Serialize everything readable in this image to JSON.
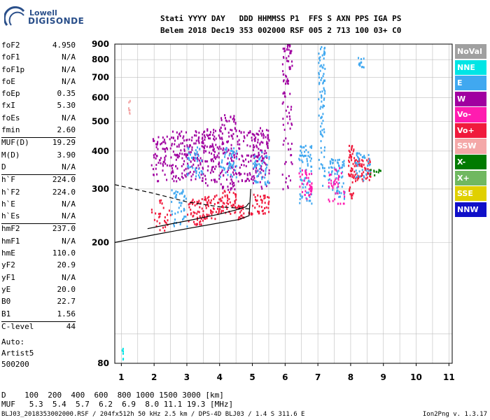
{
  "logo": {
    "line1": "Lowell",
    "line2": "DIGISONDE"
  },
  "header": {
    "line1": "Stati YYYY DAY   DDD HHMMSS P1  FFS S AXN PPS IGA PS",
    "line2": "Belem 2018 Dec19 353 002000 RSF 005 2 713 100 03+ C0"
  },
  "params": [
    {
      "name": "foF2",
      "value": "4.950"
    },
    {
      "name": "foF1",
      "value": "N/A"
    },
    {
      "name": "foF1p",
      "value": "N/A"
    },
    {
      "name": "foE",
      "value": "N/A"
    },
    {
      "name": "foEp",
      "value": "0.35"
    },
    {
      "name": "fxI",
      "value": "5.30"
    },
    {
      "name": "foEs",
      "value": "N/A"
    },
    {
      "name": "fmin",
      "value": "2.60"
    },
    {
      "name": "MUF(D)",
      "value": "19.29",
      "sep": true
    },
    {
      "name": "M(D)",
      "value": "3.90"
    },
    {
      "name": "D",
      "value": "N/A"
    },
    {
      "name": "h`F",
      "value": "224.0",
      "sep": true
    },
    {
      "name": "h`F2",
      "value": "224.0"
    },
    {
      "name": "h`E",
      "value": "N/A"
    },
    {
      "name": "h`Es",
      "value": "N/A"
    },
    {
      "name": "hmF2",
      "value": "237.0",
      "sep": true
    },
    {
      "name": "hmF1",
      "value": "N/A"
    },
    {
      "name": "hmE",
      "value": "110.0"
    },
    {
      "name": "yF2",
      "value": "20.9"
    },
    {
      "name": "yF1",
      "value": "N/A"
    },
    {
      "name": "yE",
      "value": "20.0"
    },
    {
      "name": "B0",
      "value": "22.7"
    },
    {
      "name": "B1",
      "value": "1.56"
    },
    {
      "name": "C-level",
      "value": "44",
      "sep": true
    }
  ],
  "auto": {
    "line1": "Auto:",
    "line2": "Artist5",
    "line3": "500200"
  },
  "legend": [
    {
      "label": "NoVal",
      "color": "#a0a0a0"
    },
    {
      "label": "NNE",
      "color": "#00e5e5"
    },
    {
      "label": "E",
      "color": "#40a8f0"
    },
    {
      "label": "W",
      "color": "#a000a0"
    },
    {
      "label": "Vo-",
      "color": "#ff1cb0"
    },
    {
      "label": "Vo+",
      "color": "#f01a3c"
    },
    {
      "label": "SSW",
      "color": "#f4a8a8"
    },
    {
      "label": "X-",
      "color": "#007a00"
    },
    {
      "label": "X+",
      "color": "#70b860"
    },
    {
      "label": "SSE",
      "color": "#e0d000"
    },
    {
      "label": "NNW",
      "color": "#1010c8"
    }
  ],
  "bottom": {
    "d_row": "D    100  200  400  600  800 1000 1500 3000 [km]",
    "muf_row": "MUF   5.3  5.4  5.7  6.2  6.9  8.0 11.1 19.3 [MHz]"
  },
  "footer": {
    "left": "BLJ03_2018353002000.RSF / 204fx512h 50 kHz 2.5 km / DPS-4D BLJ03 / 1.4 S 311.6 E",
    "right": "Ion2Png v. 1.3.17"
  },
  "chart_data": {
    "type": "scatter",
    "title": "",
    "xlabel": "",
    "ylabel": "",
    "xlim": [
      0.8,
      11.1
    ],
    "ylim": [
      80,
      900
    ],
    "x_ticks": [
      1,
      2,
      3,
      4,
      5,
      6,
      7,
      8,
      9,
      10,
      11
    ],
    "y_ticks": [
      80,
      200,
      300,
      400,
      500,
      600,
      700,
      800,
      900
    ],
    "y_scale": "log",
    "grid": true,
    "legend_position": "right",
    "clusters": [
      {
        "f": [
          1.0,
          1.05
        ],
        "h": [
          80,
          90
        ],
        "pol": "NNE",
        "n": 6
      },
      {
        "f": [
          1.2,
          1.25
        ],
        "h": [
          520,
          600
        ],
        "pol": "SSW",
        "n": 8
      },
      {
        "f": [
          1.9,
          2.5
        ],
        "h": [
          220,
          280
        ],
        "pol": "Vo+",
        "n": 30
      },
      {
        "f": [
          1.9,
          2.5
        ],
        "h": [
          320,
          450
        ],
        "pol": "W",
        "n": 60
      },
      {
        "f": [
          2.5,
          3.0
        ],
        "h": [
          225,
          300
        ],
        "pol": "E",
        "n": 45
      },
      {
        "f": [
          2.5,
          3.0
        ],
        "h": [
          320,
          470
        ],
        "pol": "W",
        "n": 80
      },
      {
        "f": [
          3.0,
          3.5
        ],
        "h": [
          230,
          280
        ],
        "pol": "Vo+",
        "n": 50
      },
      {
        "f": [
          3.0,
          3.5
        ],
        "h": [
          320,
          470
        ],
        "pol": "W",
        "n": 80
      },
      {
        "f": [
          3.0,
          3.5
        ],
        "h": [
          330,
          420
        ],
        "pol": "E",
        "n": 40
      },
      {
        "f": [
          3.5,
          4.0
        ],
        "h": [
          240,
          290
        ],
        "pol": "Vo+",
        "n": 50
      },
      {
        "f": [
          3.5,
          4.0
        ],
        "h": [
          310,
          480
        ],
        "pol": "W",
        "n": 90
      },
      {
        "f": [
          4.0,
          4.5
        ],
        "h": [
          250,
          300
        ],
        "pol": "Vo+",
        "n": 50
      },
      {
        "f": [
          4.0,
          4.5
        ],
        "h": [
          300,
          530
        ],
        "pol": "W",
        "n": 110
      },
      {
        "f": [
          4.0,
          4.5
        ],
        "h": [
          330,
          420
        ],
        "pol": "E",
        "n": 50
      },
      {
        "f": [
          4.5,
          5.0
        ],
        "h": [
          240,
          270
        ],
        "pol": "Vo+",
        "n": 30
      },
      {
        "f": [
          4.5,
          5.0
        ],
        "h": [
          320,
          470
        ],
        "pol": "W",
        "n": 60
      },
      {
        "f": [
          5.0,
          5.5
        ],
        "h": [
          250,
          290
        ],
        "pol": "Vo+",
        "n": 40
      },
      {
        "f": [
          5.0,
          5.5
        ],
        "h": [
          300,
          480
        ],
        "pol": "W",
        "n": 110
      },
      {
        "f": [
          5.0,
          5.5
        ],
        "h": [
          310,
          400
        ],
        "pol": "E",
        "n": 50
      },
      {
        "f": [
          5.9,
          6.2
        ],
        "h": [
          300,
          900
        ],
        "pol": "W",
        "n": 90
      },
      {
        "f": [
          6.4,
          6.8
        ],
        "h": [
          270,
          420
        ],
        "pol": "E",
        "n": 70
      },
      {
        "f": [
          6.4,
          6.8
        ],
        "h": [
          280,
          350
        ],
        "pol": "Vo-",
        "n": 40
      },
      {
        "f": [
          7.0,
          7.2
        ],
        "h": [
          300,
          900
        ],
        "pol": "E",
        "n": 90
      },
      {
        "f": [
          7.3,
          7.8
        ],
        "h": [
          280,
          380
        ],
        "pol": "E",
        "n": 70
      },
      {
        "f": [
          7.3,
          7.8
        ],
        "h": [
          270,
          360
        ],
        "pol": "Vo-",
        "n": 40
      },
      {
        "f": [
          7.9,
          8.1
        ],
        "h": [
          280,
          420
        ],
        "pol": "Vo+",
        "n": 50
      },
      {
        "f": [
          8.1,
          8.6
        ],
        "h": [
          320,
          380
        ],
        "pol": "Vo+",
        "n": 60
      },
      {
        "f": [
          8.1,
          8.6
        ],
        "h": [
          320,
          400
        ],
        "pol": "E",
        "n": 40
      },
      {
        "f": [
          8.2,
          8.5
        ],
        "h": [
          760,
          820
        ],
        "pol": "E",
        "n": 12
      },
      {
        "f": [
          8.5,
          9.0
        ],
        "h": [
          330,
          350
        ],
        "pol": "X-",
        "n": 10
      }
    ],
    "traces": [
      {
        "name": "profile",
        "style": "solid",
        "f": [
          0.8,
          2.0,
          3.0,
          4.0,
          4.6,
          4.9,
          4.95
        ],
        "h": [
          200,
          212,
          222,
          232,
          238,
          245,
          300
        ]
      },
      {
        "name": "virtual_height",
        "style": "solid",
        "f": [
          1.8,
          2.5,
          3.2,
          4.0,
          4.5,
          4.8,
          4.9
        ],
        "h": [
          222,
          230,
          238,
          248,
          256,
          262,
          270
        ]
      },
      {
        "name": "extrapolated",
        "style": "dashed",
        "f": [
          0.8,
          2.0,
          3.0,
          4.0,
          4.9
        ],
        "h": [
          310,
          290,
          272,
          262,
          258
        ]
      }
    ]
  }
}
